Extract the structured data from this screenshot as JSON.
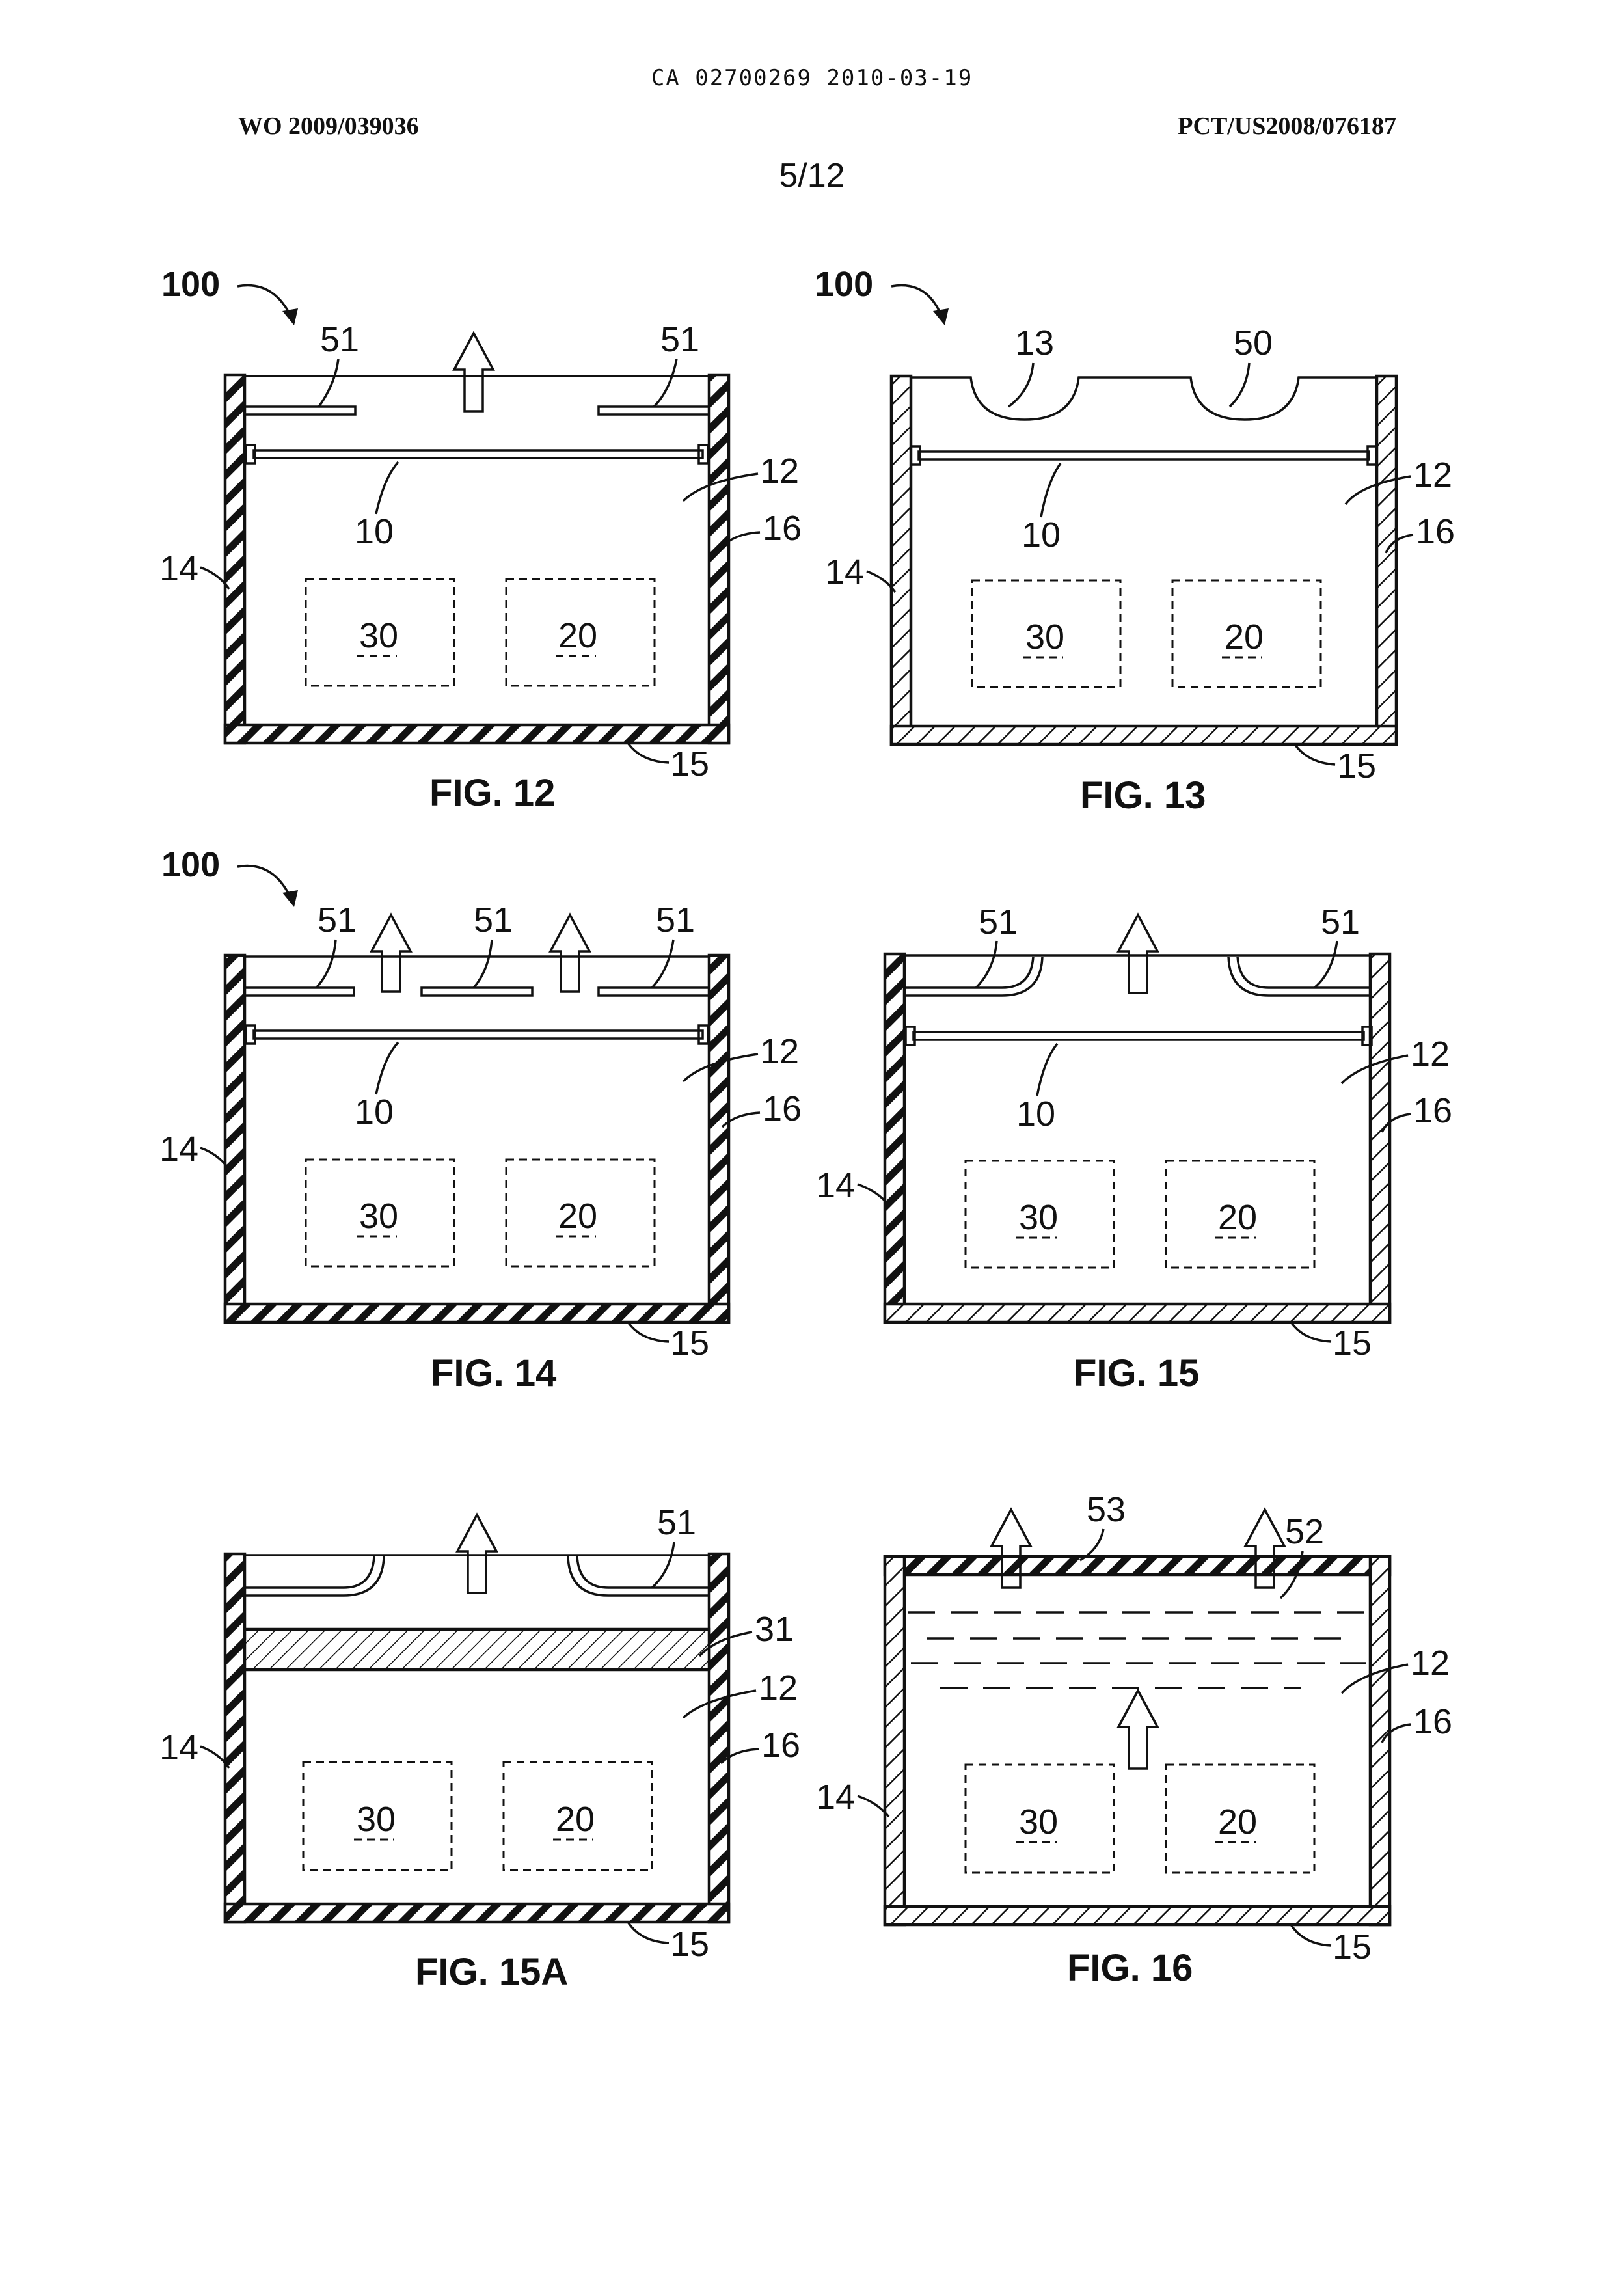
{
  "header": {
    "doc_id": "CA 02700269 2010-03-19",
    "publication_left": "WO 2009/039036",
    "publication_right": "PCT/US2008/076187",
    "sheet": "5/12"
  },
  "labels": {
    "ref_100": "100",
    "ref_51": "51",
    "ref_10": "10",
    "ref_12": "12",
    "ref_14": "14",
    "ref_15": "15",
    "ref_16": "16",
    "ref_20": "20",
    "ref_30": "30",
    "ref_13": "13",
    "ref_50": "50",
    "ref_31": "31",
    "ref_52": "52",
    "ref_53": "53"
  },
  "figures": {
    "fig12": "FIG. 12",
    "fig13": "FIG. 13",
    "fig14": "FIG. 14",
    "fig15": "FIG. 15",
    "fig15a": "FIG. 15A",
    "fig16": "FIG. 16"
  }
}
